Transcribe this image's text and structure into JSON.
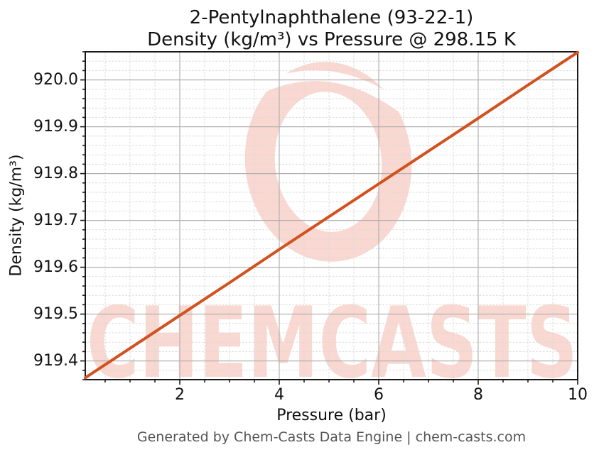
{
  "title": {
    "line1": "2-Pentylnaphthalene (93-22-1)",
    "line2": "Density (kg/m³) vs Pressure @ 298.15 K"
  },
  "footer": {
    "text": "Generated by Chem-Casts Data Engine | chem-casts.com"
  },
  "watermark": {
    "text": "CHEMCASTS"
  },
  "colors": {
    "line": "#d2511e",
    "watermark": "#f9d8d1",
    "major_grid": "#b2b2b2",
    "minor_grid": "#d9d9d9",
    "spine": "#1a1a1a",
    "title_text": "#111111",
    "footer_text": "#555555"
  },
  "axes": {
    "x": {
      "label": "Pressure (bar)",
      "min": 0.1,
      "max": 10,
      "major_tick_values": [
        2,
        4,
        6,
        8,
        10
      ],
      "major_tick_labels": [
        "2",
        "4",
        "6",
        "8",
        "10"
      ],
      "minor_step": 0.5
    },
    "y": {
      "label": "Density (kg/m³)",
      "min": 919.36,
      "max": 920.06,
      "major_tick_values": [
        919.4,
        919.5,
        919.6,
        919.7,
        919.8,
        919.9,
        920.0
      ],
      "major_tick_labels": [
        "919.4",
        "919.5",
        "919.6",
        "919.7",
        "919.8",
        "919.9",
        "920.0"
      ],
      "minor_step": 0.02
    }
  },
  "chart_data": {
    "type": "line",
    "title": "2-Pentylnaphthalene (93-22-1) — Density (kg/m³) vs Pressure @ 298.15 K",
    "xlabel": "Pressure (bar)",
    "ylabel": "Density (kg/m³)",
    "xlim": [
      0.1,
      10
    ],
    "ylim": [
      919.36,
      920.06
    ],
    "grid": "major solid + minor dashed",
    "legend": false,
    "series": [
      {
        "name": "Density vs Pressure @ 298.15 K",
        "color": "#d2511e",
        "x": [
          0.1,
          1,
          2,
          3,
          4,
          5,
          6,
          7,
          8,
          9,
          10
        ],
        "y": [
          919.364,
          919.427,
          919.497,
          919.567,
          919.638,
          919.708,
          919.778,
          919.848,
          919.918,
          919.989,
          920.059
        ]
      }
    ]
  }
}
